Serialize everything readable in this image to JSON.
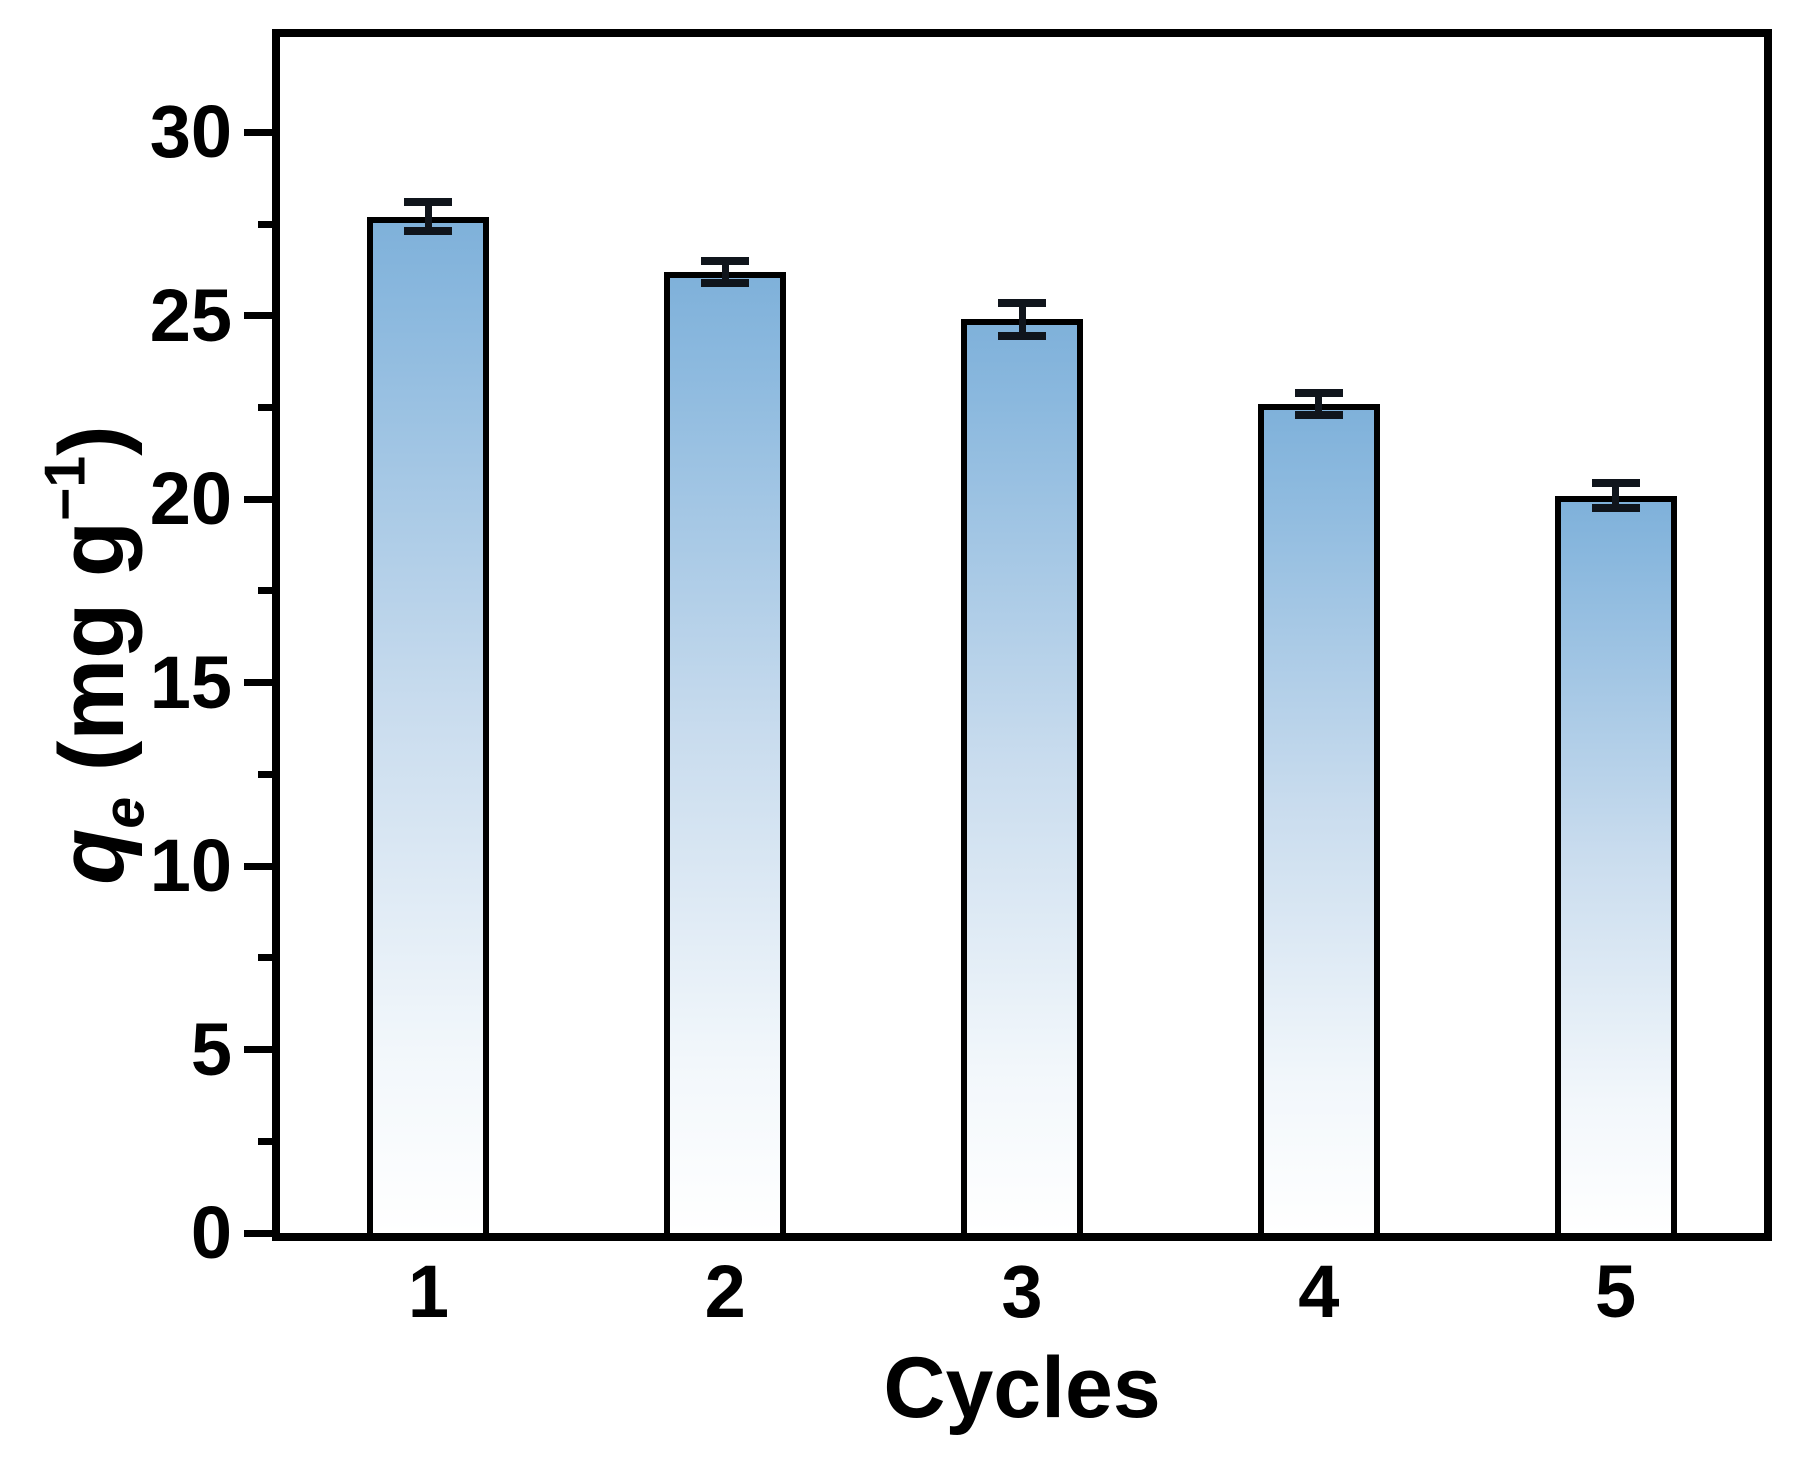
{
  "figure": {
    "xlabel": "Cycles",
    "ylabel_parts": {
      "var": "q",
      "sub": "e",
      "mid": " (mg g",
      "sup": "−1",
      "end": ")"
    }
  },
  "chart_data": {
    "type": "bar",
    "title": "",
    "xlabel": "Cycles",
    "ylabel": "q_e (mg g^-1)",
    "categories": [
      "1",
      "2",
      "3",
      "4",
      "5"
    ],
    "values": [
      27.7,
      26.2,
      24.9,
      22.6,
      20.1
    ],
    "errors": [
      0.4,
      0.3,
      0.45,
      0.3,
      0.35
    ],
    "ylim": [
      0,
      32.6
    ],
    "yticks_major": [
      0,
      5,
      10,
      15,
      20,
      25,
      30
    ],
    "ytick_labels": [
      "0",
      "5",
      "10",
      "15",
      "20",
      "25",
      "30"
    ],
    "yticks_minor": [
      2.5,
      7.5,
      12.5,
      17.5,
      22.5,
      27.5
    ],
    "grid": false,
    "legend": null,
    "bar_centers_fraction": [
      0.1,
      0.3,
      0.5,
      0.7,
      0.9
    ],
    "colors": {
      "bar_top": "#7fb1da",
      "bar_upper": "#8ab8de",
      "bar_mid": "#c9dcee",
      "bar_low": "#f2f7fb",
      "bar_bottom": "#ffffff",
      "bar_border": "#000000",
      "error_bar": "#10151c",
      "axis": "#000000"
    }
  }
}
